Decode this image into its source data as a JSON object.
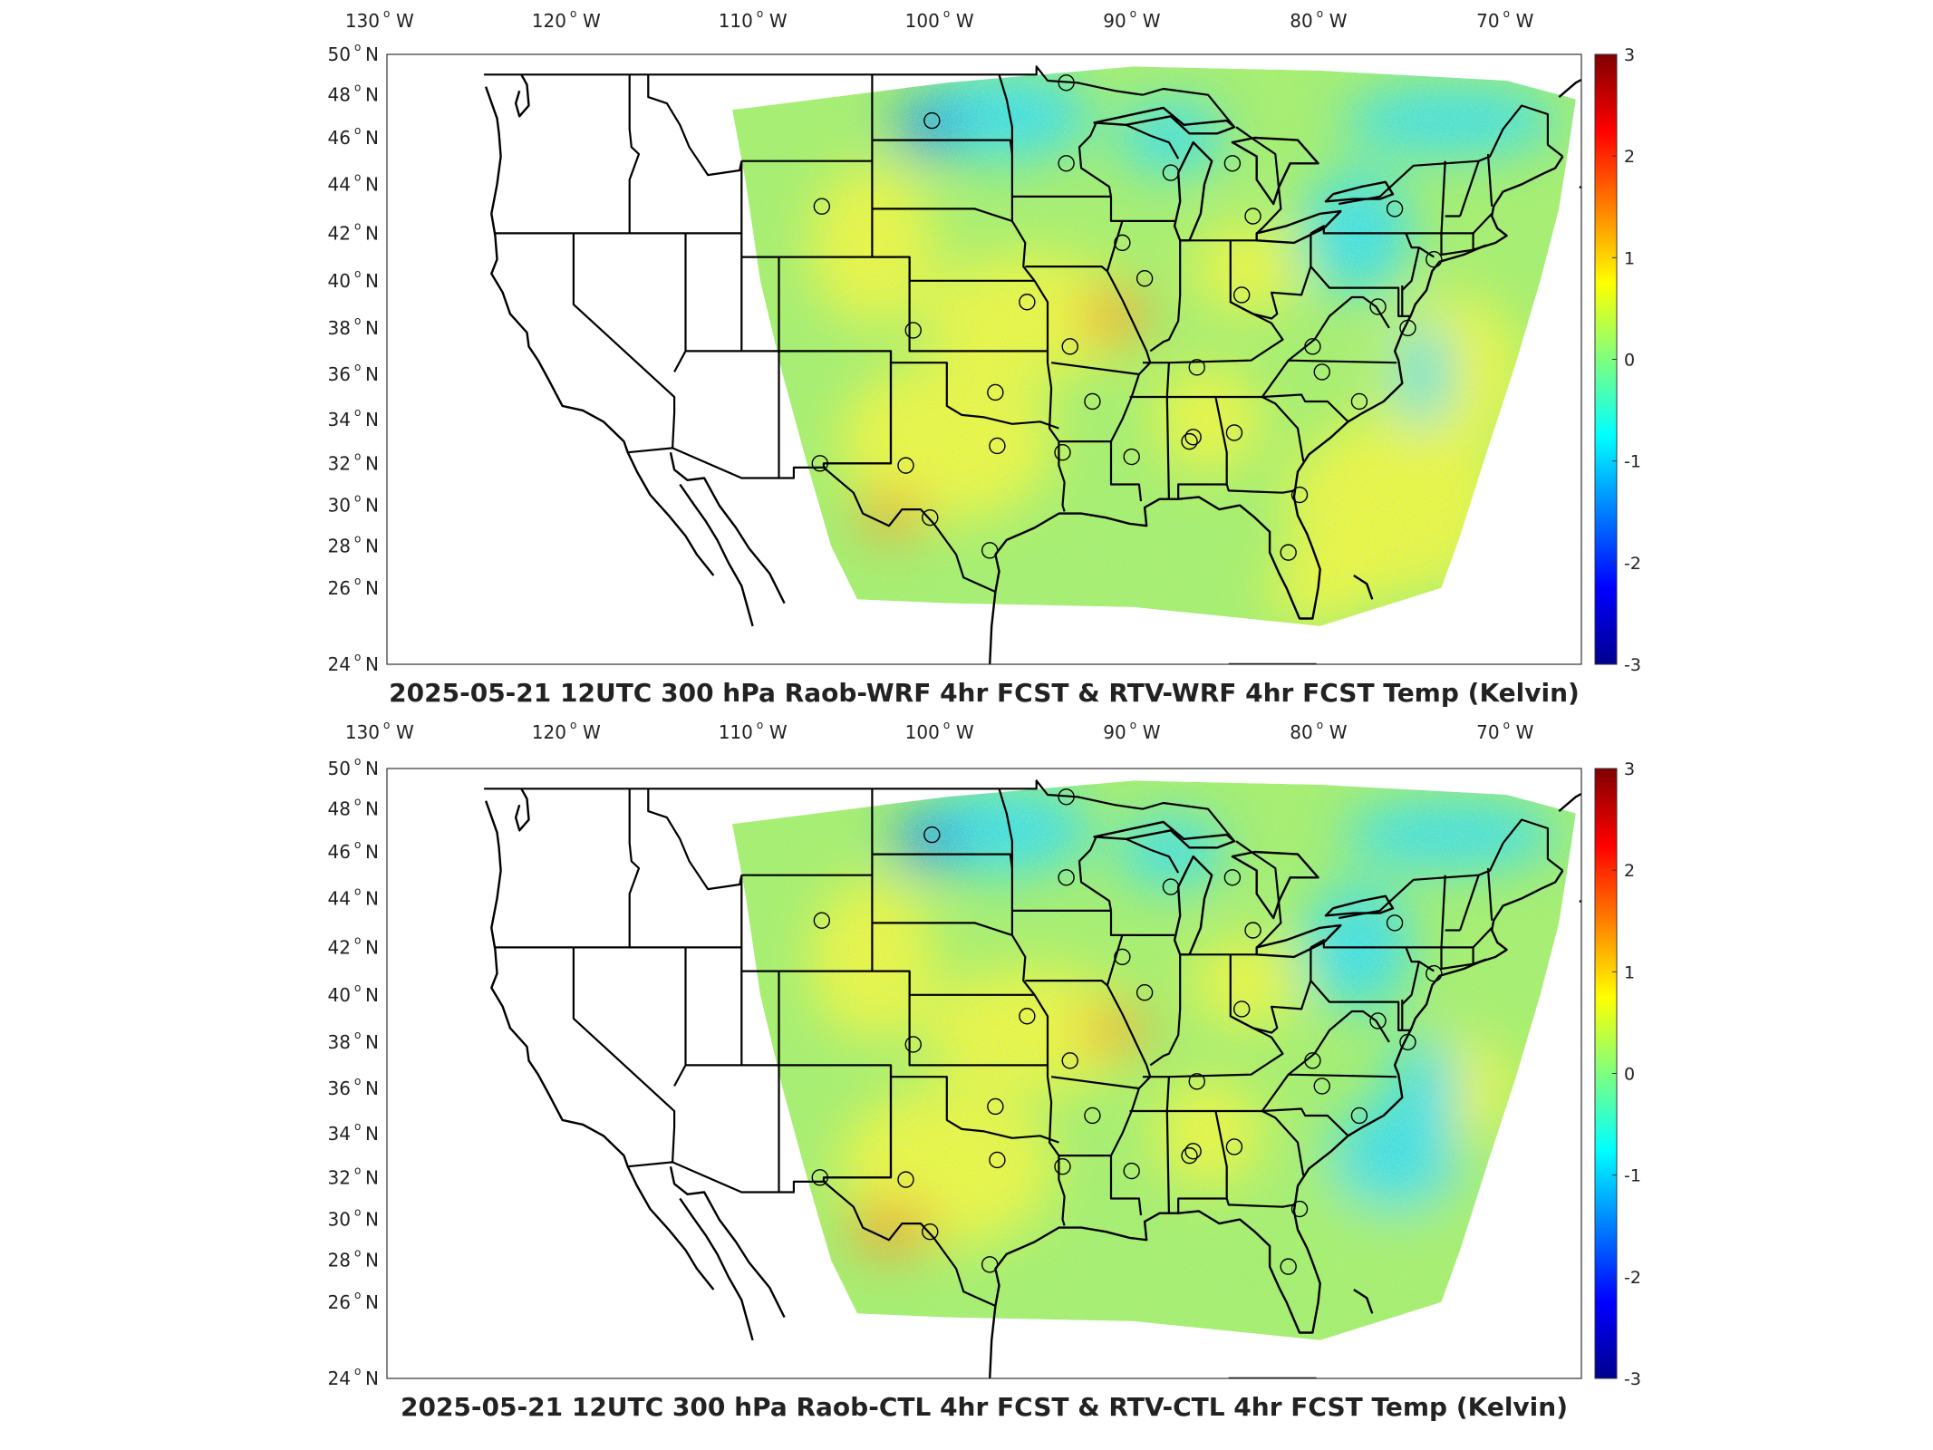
{
  "colorbar": {
    "min": -3,
    "max": 3,
    "ticks": [
      "3",
      "2",
      "1",
      "0",
      "-1",
      "-2",
      "-3"
    ],
    "colors": [
      "#00008f",
      "#0000ff",
      "#007fff",
      "#00ffff",
      "#7fff7f",
      "#ffff00",
      "#ff7f00",
      "#ff0000",
      "#7f0000"
    ]
  },
  "field_colors": {
    "warm": "#f5f53a",
    "neutral": "#a8ee6a",
    "cool": "#39dcee",
    "cold": "#1d8eea",
    "hot": "#f2a028"
  },
  "lon_labels": [
    "130",
    "120",
    "110",
    "100",
    "90",
    "80",
    "70"
  ],
  "lon_suffix": "W",
  "lat_labels": [
    "50",
    "48",
    "46",
    "44",
    "42",
    "40",
    "38",
    "36",
    "34",
    "32",
    "30",
    "28",
    "26",
    "24"
  ],
  "lat_suffix": "N",
  "deg": "o",
  "panels": [
    {
      "title": "2025-05-21 12UTC 300 hPa Raob-WRF 4hr FCST & RTV-WRF 4hr FCST Temp (Kelvin)"
    },
    {
      "title": "2025-05-21 12UTC 300 hPa Raob-CTL 4hr FCST & RTV-CTL 4hr FCST Temp (Kelvin)"
    }
  ],
  "stations": [
    [
      -93.6,
      48.6
    ],
    [
      -100.8,
      46.8
    ],
    [
      -93.6,
      44.9
    ],
    [
      -88.0,
      44.5
    ],
    [
      -84.7,
      44.9
    ],
    [
      -106.7,
      43.1
    ],
    [
      -90.6,
      41.6
    ],
    [
      -83.6,
      42.7
    ],
    [
      -76.0,
      43.0
    ],
    [
      -73.9,
      40.9
    ],
    [
      -89.4,
      40.1
    ],
    [
      -84.2,
      39.4
    ],
    [
      -95.7,
      39.1
    ],
    [
      -101.8,
      37.9
    ],
    [
      -93.4,
      37.2
    ],
    [
      -80.4,
      37.2
    ],
    [
      -76.9,
      38.9
    ],
    [
      -75.3,
      38.0
    ],
    [
      -86.6,
      36.3
    ],
    [
      -79.9,
      36.1
    ],
    [
      -97.4,
      35.2
    ],
    [
      -92.2,
      34.8
    ],
    [
      -77.9,
      34.8
    ],
    [
      -97.3,
      32.8
    ],
    [
      -93.8,
      32.5
    ],
    [
      -90.1,
      32.3
    ],
    [
      -86.8,
      33.2
    ],
    [
      -84.6,
      33.4
    ],
    [
      -106.8,
      32.0
    ],
    [
      -102.2,
      31.9
    ],
    [
      -100.9,
      29.4
    ],
    [
      -97.7,
      27.8
    ],
    [
      -81.7,
      27.7
    ],
    [
      -81.1,
      30.5
    ],
    [
      -87.0,
      33.0
    ]
  ]
}
